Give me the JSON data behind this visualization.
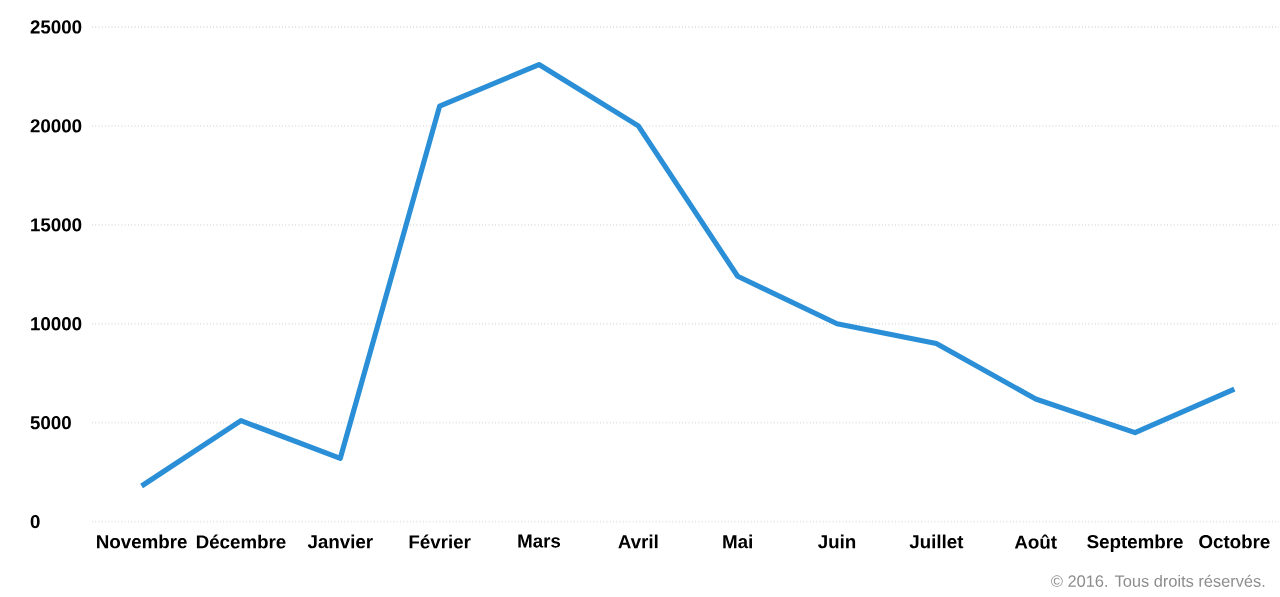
{
  "chart_data": {
    "type": "line",
    "categories": [
      "Novembre",
      "Décembre",
      "Janvier",
      "Février",
      "Mars",
      "Avril",
      "Mai",
      "Juin",
      "Juillet",
      "Août",
      "Septembre",
      "Octobre"
    ],
    "series": [
      {
        "color": "#2a8fd6",
        "values": [
          1800,
          5100,
          3200,
          21000,
          23100,
          20000,
          12400,
          10000,
          9000,
          6200,
          4500,
          6700
        ]
      }
    ],
    "ylim": [
      0,
      25000
    ],
    "yticks": [
      0,
      5000,
      10000,
      15000,
      20000,
      25000
    ],
    "grid": "y",
    "line_style": "solid",
    "annotations": [
      "© 2016. Tous droits réservés."
    ]
  }
}
